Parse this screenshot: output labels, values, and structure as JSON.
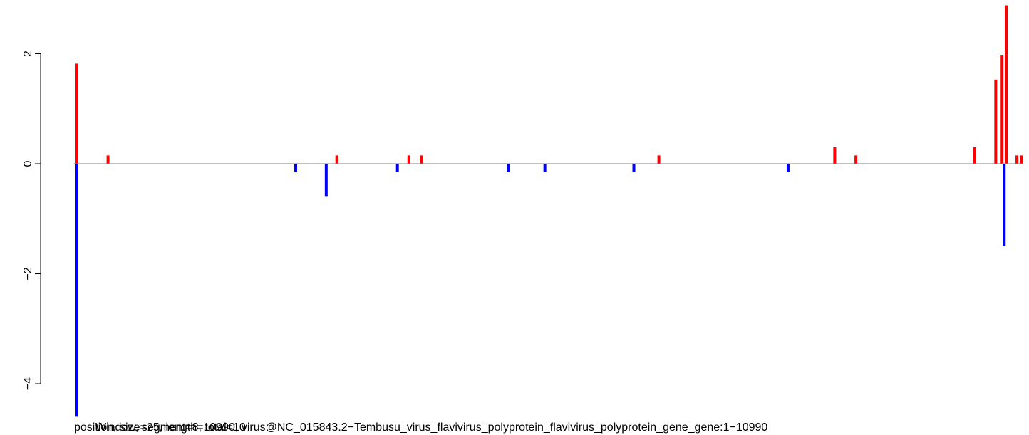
{
  "chart_data": {
    "type": "bar",
    "xlabel_layer_1": "position, size=25, length=10990, virus@NC_015843.2−Tembusu_virus_flavivirus_polyprotein_flavivirus_polyprotein_gene_gene:1−10990",
    "xlabel_layer_2": "Window, segment=8, total=10",
    "ylim": [
      -4.5,
      2.9
    ],
    "yticks": [
      {
        "value": -4,
        "label": "−4"
      },
      {
        "value": -2,
        "label": "−2"
      },
      {
        "value": 0,
        "label": "0"
      },
      {
        "value": 2,
        "label": "2"
      }
    ],
    "xlim": [
      0,
      10990
    ],
    "grid": false,
    "series": [
      {
        "color": "#ff0000",
        "points": [
          {
            "x": 0,
            "y": 1.82
          },
          {
            "x": 375,
            "y": 0.15
          },
          {
            "x": 3075,
            "y": 0.15
          },
          {
            "x": 3925,
            "y": 0.15
          },
          {
            "x": 4075,
            "y": 0.15
          },
          {
            "x": 6875,
            "y": 0.15
          },
          {
            "x": 8950,
            "y": 0.3
          },
          {
            "x": 9200,
            "y": 0.15
          },
          {
            "x": 10600,
            "y": 0.3
          },
          {
            "x": 10850,
            "y": 1.53
          },
          {
            "x": 10925,
            "y": 1.98
          },
          {
            "x": 10975,
            "y": 2.88
          },
          {
            "x": 11100,
            "y": 0.15
          },
          {
            "x": 11150,
            "y": 0.15
          }
        ]
      },
      {
        "color": "#0000ff",
        "points": [
          {
            "x": 0,
            "y": -4.6
          },
          {
            "x": 2590,
            "y": -0.15
          },
          {
            "x": 2950,
            "y": -0.6
          },
          {
            "x": 3790,
            "y": -0.15
          },
          {
            "x": 5100,
            "y": -0.15
          },
          {
            "x": 5530,
            "y": -0.15
          },
          {
            "x": 6580,
            "y": -0.15
          },
          {
            "x": 8400,
            "y": -0.15
          },
          {
            "x": 10950,
            "y": -1.5
          }
        ]
      }
    ]
  }
}
